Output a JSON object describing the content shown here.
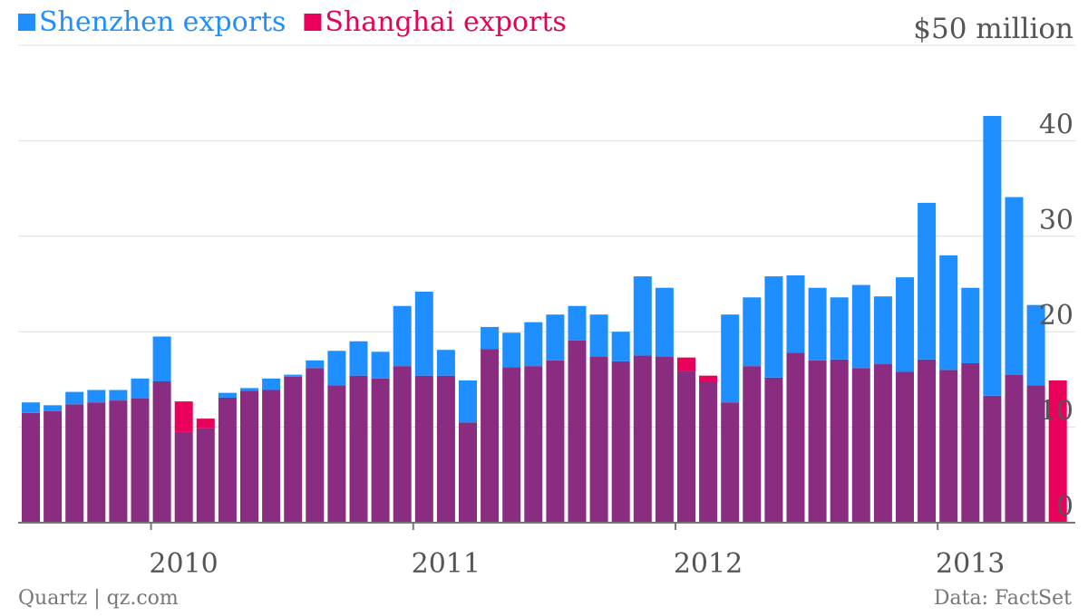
{
  "chart_data": {
    "type": "bar",
    "title": "",
    "units_label": "$50 million",
    "legend": [
      {
        "name": "Shenzhen exports",
        "color": "#1f8fff"
      },
      {
        "name": "Shanghai exports",
        "color": "#e8005a"
      }
    ],
    "overlap_color": "#8a2c80",
    "x_start": "2009-07",
    "x_tick_labels": [
      "2010",
      "2011",
      "2012",
      "2013"
    ],
    "y_ticks": [
      0,
      10,
      20,
      30,
      40
    ],
    "ylim": [
      0,
      50
    ],
    "grid": true,
    "legend_position": "top-left",
    "series": [
      {
        "name": "Shenzhen exports",
        "values": [
          12.6,
          12.3,
          13.7,
          13.9,
          13.9,
          15.1,
          19.5,
          9.5,
          9.9,
          13.6,
          14.1,
          15.1,
          15.5,
          17.0,
          18.0,
          19.0,
          17.9,
          22.7,
          24.2,
          18.1,
          14.9,
          20.5,
          19.9,
          21.0,
          21.8,
          22.7,
          21.8,
          20.0,
          25.8,
          24.6,
          15.9,
          14.8,
          21.8,
          23.6,
          25.8,
          25.9,
          24.6,
          23.6,
          24.9,
          23.7,
          25.7,
          33.5,
          28.0,
          24.6,
          42.6,
          34.1,
          22.8
        ]
      },
      {
        "name": "Shanghai exports",
        "values": [
          11.5,
          11.7,
          12.4,
          12.6,
          12.8,
          13.0,
          14.8,
          12.7,
          10.9,
          13.1,
          13.8,
          13.9,
          15.3,
          16.2,
          14.4,
          15.4,
          15.1,
          16.4,
          15.4,
          15.4,
          10.5,
          18.2,
          16.3,
          16.4,
          17.0,
          19.1,
          17.4,
          16.9,
          17.5,
          17.4,
          17.3,
          15.4,
          12.6,
          16.4,
          15.2,
          17.8,
          17.0,
          17.1,
          16.2,
          16.6,
          15.8,
          17.1,
          16.0,
          16.7,
          13.3,
          15.5,
          14.4,
          14.9
        ]
      }
    ]
  },
  "footer": {
    "source_left": "Quartz | qz.com",
    "source_right": "Data: FactSet"
  }
}
